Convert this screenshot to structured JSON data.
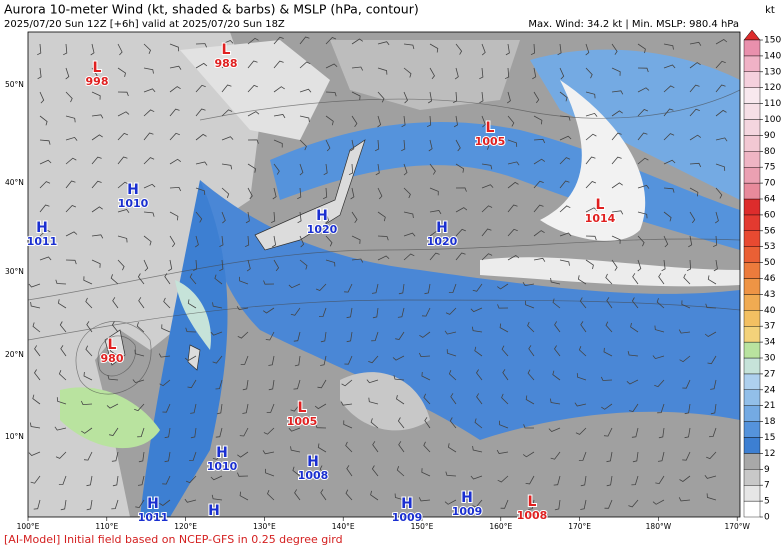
{
  "header": {
    "title": "Aurora 10-meter Wind (kt, shaded & barbs) & MSLP (hPa, contour)",
    "subtitle": "2025/07/20 Sun 12Z [+6h] valid at 2025/07/20 Sun 18Z",
    "stats": "Max. Wind: 34.2 kt | Min. MSLP: 980.4 hPa"
  },
  "colorbar": {
    "unit": "kt",
    "ticks": [
      0,
      5,
      7,
      9,
      12,
      15,
      18,
      21,
      24,
      27,
      30,
      34,
      37,
      40,
      43,
      46,
      50,
      53,
      56,
      60,
      64,
      70,
      75,
      80,
      90,
      100,
      110,
      120,
      130,
      140,
      150
    ],
    "colors": [
      "#ffffff",
      "#e6e6e6",
      "#c8c8c8",
      "#a8a8a8",
      "#3d7fd2",
      "#5593dc",
      "#74aae3",
      "#92bfe9",
      "#aed0ee",
      "#c6e3d9",
      "#b9e39f",
      "#f3d27a",
      "#f3c062",
      "#f0ab52",
      "#ee9445",
      "#ec7b3c",
      "#ea6035",
      "#e84a31",
      "#e33a30",
      "#dd2c2c",
      "#e88a9b",
      "#eba0b2",
      "#efb5c4",
      "#f2c8d3",
      "#f4d6df",
      "#f6dfe6",
      "#f8e8ee",
      "#f5d0dd",
      "#f0b2c6",
      "#e990ad"
    ]
  },
  "latitude_labels": [
    "50°N",
    "40°N",
    "30°N",
    "20°N",
    "10°N"
  ],
  "longitude_labels": [
    "100°E",
    "110°E",
    "120°E",
    "130°E",
    "140°E",
    "150°E",
    "160°E",
    "170°E",
    "180°W",
    "170°W"
  ],
  "pressure_centers": [
    {
      "symbol": "L",
      "pressure": 998
    },
    {
      "symbol": "L",
      "pressure": 988
    },
    {
      "symbol": "L",
      "pressure": 1005
    },
    {
      "symbol": "L",
      "pressure": 1014
    },
    {
      "symbol": "H",
      "pressure": 1010
    },
    {
      "symbol": "H",
      "pressure": 1011
    },
    {
      "symbol": "H",
      "pressure": 1020
    },
    {
      "symbol": "H",
      "pressure": 1020
    },
    {
      "symbol": "L",
      "pressure": 980
    },
    {
      "symbol": "L",
      "pressure": 1005
    },
    {
      "symbol": "H",
      "pressure": 1010
    },
    {
      "symbol": "H",
      "pressure": 1008
    },
    {
      "symbol": "H",
      "pressure": 1011
    },
    {
      "symbol": "H"
    },
    {
      "symbol": "H",
      "pressure": 1009
    },
    {
      "symbol": "H",
      "pressure": 1009
    },
    {
      "symbol": "L",
      "pressure": 1008
    }
  ],
  "footer": "[AI-Model] Initial field based on NCEP-GFS in 0.25 degree gird"
}
